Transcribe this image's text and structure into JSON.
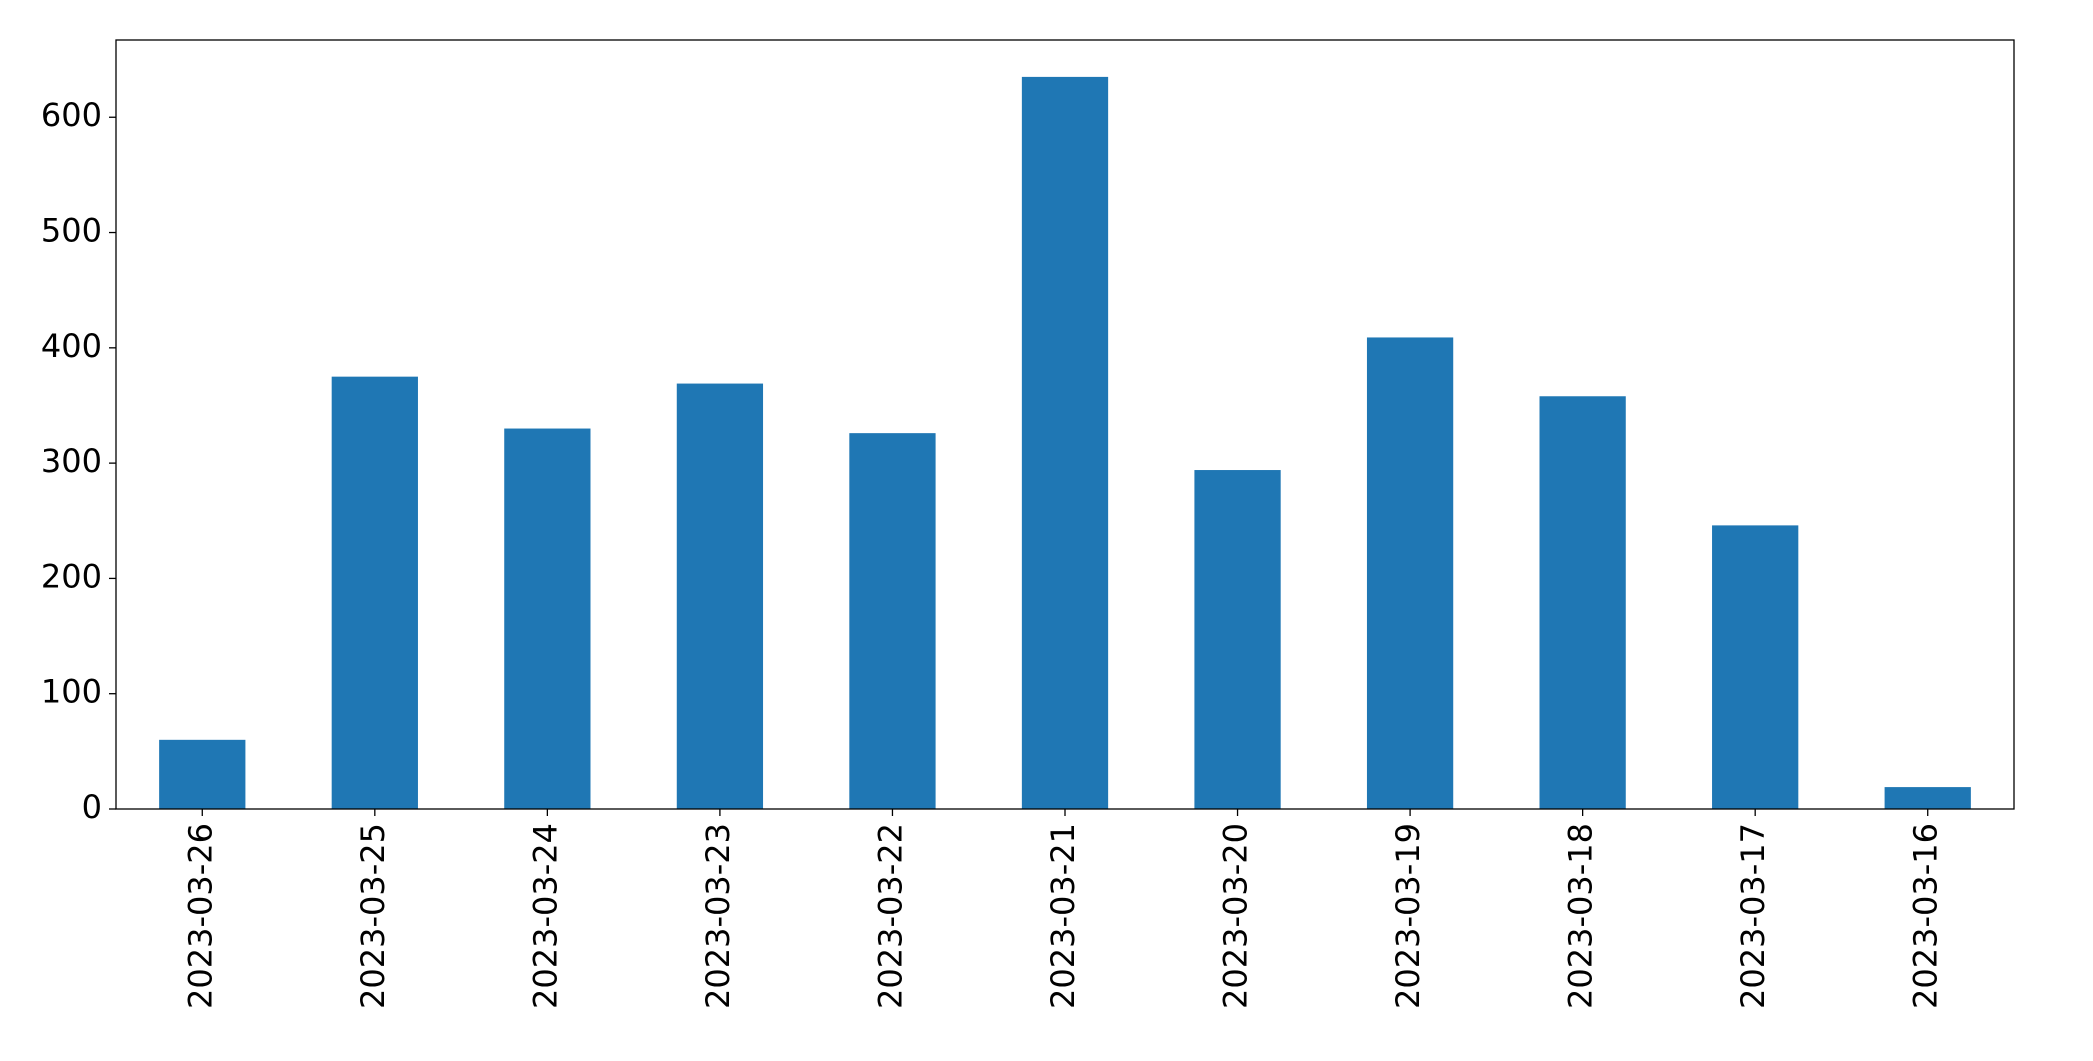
{
  "chart_data": {
    "type": "bar",
    "categories": [
      "2023-03-26",
      "2023-03-25",
      "2023-03-24",
      "2023-03-23",
      "2023-03-22",
      "2023-03-21",
      "2023-03-20",
      "2023-03-19",
      "2023-03-18",
      "2023-03-17",
      "2023-03-16"
    ],
    "values": [
      60,
      375,
      330,
      369,
      326,
      635,
      294,
      409,
      358,
      246,
      19
    ],
    "color": "#1f77b4",
    "ylim": [
      0,
      667
    ],
    "yticks": [
      0,
      100,
      200,
      300,
      400,
      500,
      600
    ],
    "grid": false
  }
}
